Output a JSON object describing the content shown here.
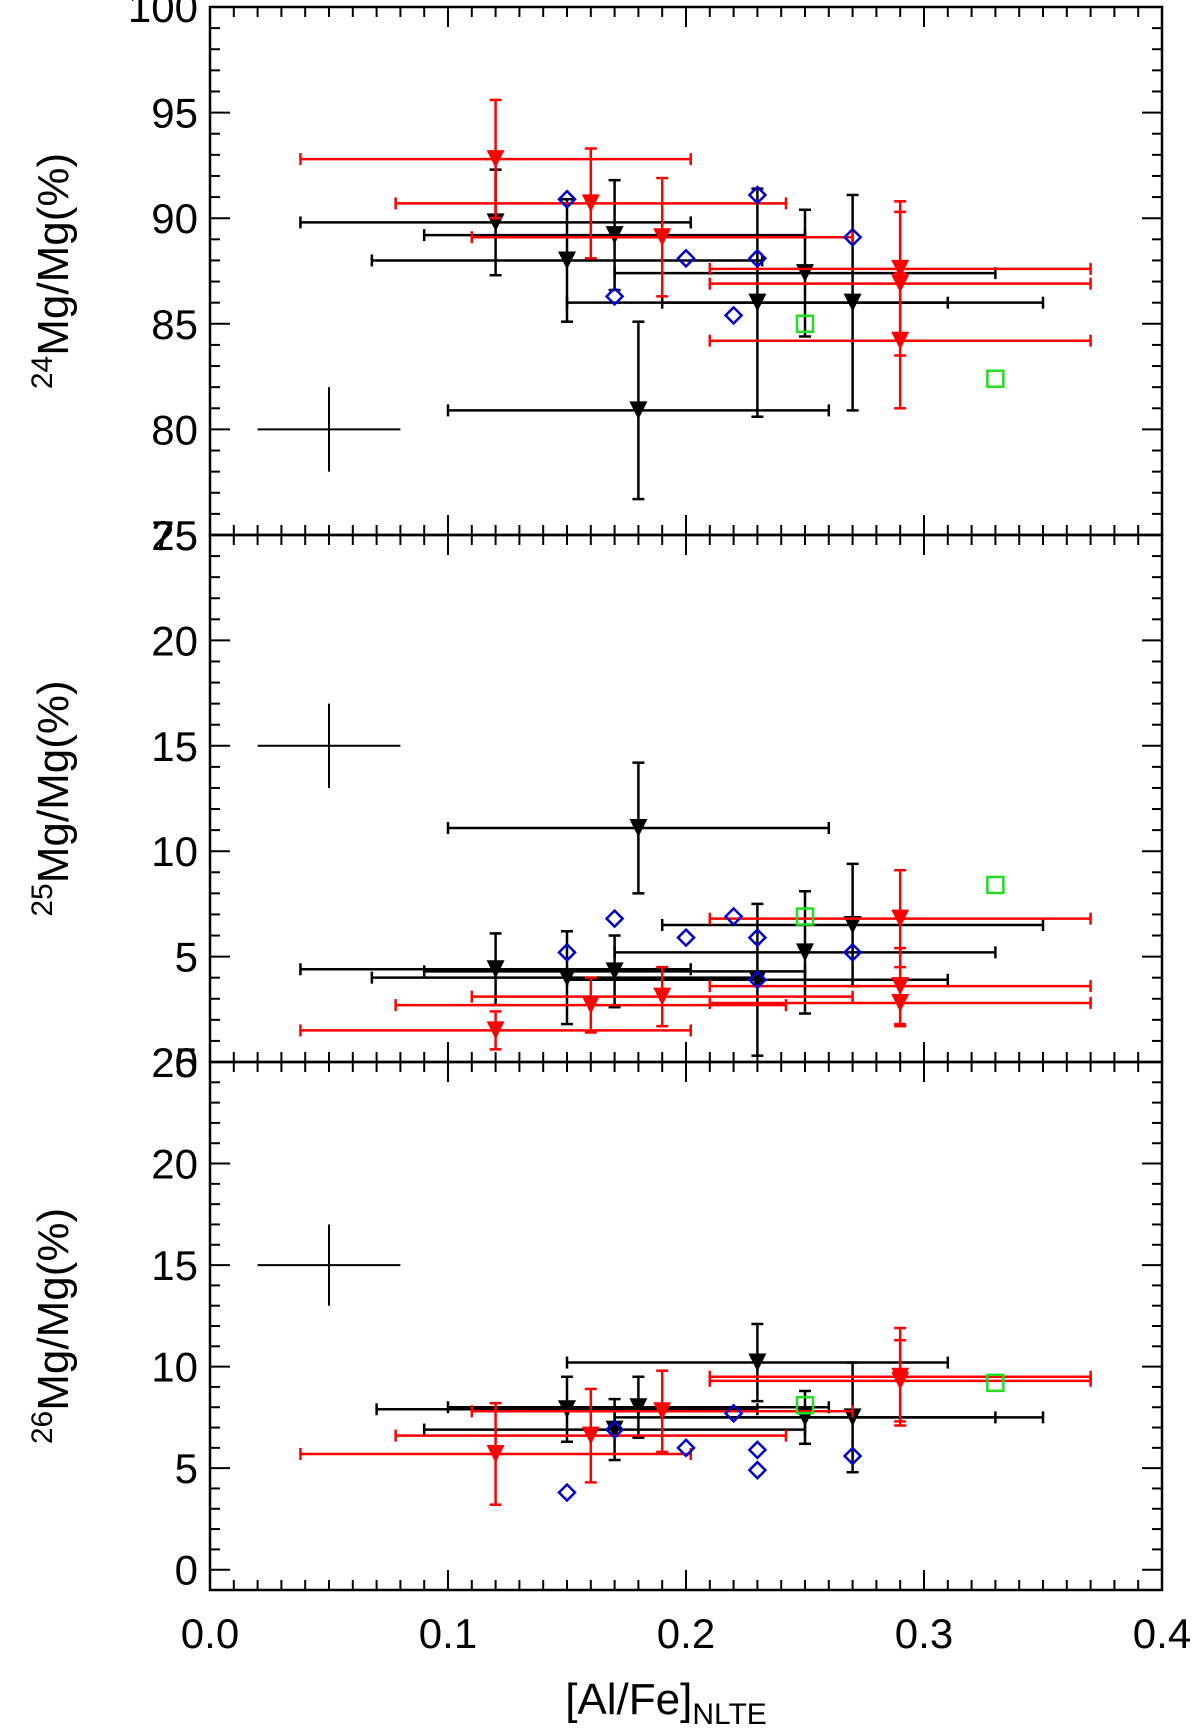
{
  "chart_data": {
    "type": "scatter",
    "shared_x": {
      "label_main": "[Al/Fe]",
      "label_sub": "NLTE",
      "range": [
        0.0,
        0.4
      ],
      "ticks": [
        0.0,
        0.1,
        0.2,
        0.3,
        0.4
      ],
      "tick_labels": [
        "0.0",
        "0.1",
        "0.2",
        "0.3",
        "0.4"
      ]
    },
    "colors": {
      "black": "#000000",
      "red": "#ff0000",
      "blue": "#0000cc",
      "green": "#22dd22"
    },
    "panels": [
      {
        "ylabel_sup": "24",
        "ylabel_rest": "Mg/Mg(%)",
        "ylim": [
          75,
          100
        ],
        "ticks": [
          75,
          80,
          85,
          90,
          95,
          100
        ],
        "tick_labels": [
          "75",
          "80",
          "85",
          "90",
          "95",
          "100"
        ],
        "typical_error": {
          "x": 0.05,
          "y": 80,
          "xerr": 0.03,
          "yerr": 2
        },
        "black_triangles": [
          {
            "x": 0.12,
            "y": 89.8,
            "xerr": 0.082,
            "yerr": 2.5
          },
          {
            "x": 0.15,
            "y": 88.0,
            "xerr": 0.082,
            "yerr": 2.9
          },
          {
            "x": 0.17,
            "y": 89.2,
            "xerr": 0.08,
            "yerr": 2.6
          },
          {
            "x": 0.18,
            "y": 80.9,
            "xerr": 0.08,
            "yerr": 4.2
          },
          {
            "x": 0.23,
            "y": 86.0,
            "xerr": 0.08,
            "yerr": 5.4
          },
          {
            "x": 0.25,
            "y": 87.4,
            "xerr": 0.08,
            "yerr": 3.0
          },
          {
            "x": 0.27,
            "y": 86.0,
            "xerr": 0.08,
            "yerr": 5.1
          }
        ],
        "red_triangles": [
          {
            "x": 0.12,
            "y": 92.8,
            "xerr": 0.082,
            "yerr": 2.8
          },
          {
            "x": 0.16,
            "y": 90.7,
            "xerr": 0.082,
            "yerr": 2.6
          },
          {
            "x": 0.19,
            "y": 89.1,
            "xerr": 0.08,
            "yerr": 2.8
          },
          {
            "x": 0.29,
            "y": 87.6,
            "xerr": 0.08,
            "yerr": 3.2
          },
          {
            "x": 0.29,
            "y": 86.9,
            "xerr": 0.08,
            "yerr": 3.4
          },
          {
            "x": 0.29,
            "y": 84.2,
            "xerr": 0.08,
            "yerr": 3.2
          }
        ],
        "blue_diamonds": [
          {
            "x": 0.15,
            "y": 90.9
          },
          {
            "x": 0.17,
            "y": 86.3
          },
          {
            "x": 0.2,
            "y": 88.1
          },
          {
            "x": 0.22,
            "y": 85.4
          },
          {
            "x": 0.23,
            "y": 91.1
          },
          {
            "x": 0.23,
            "y": 88.1
          },
          {
            "x": 0.27,
            "y": 89.1
          }
        ],
        "green_squares": [
          {
            "x": 0.25,
            "y": 85.0
          },
          {
            "x": 0.33,
            "y": 82.4
          }
        ]
      },
      {
        "ylabel_sup": "25",
        "ylabel_rest": "Mg/Mg(%)",
        "ylim": [
          0,
          25
        ],
        "ticks": [
          0,
          5,
          10,
          15,
          20,
          25
        ],
        "tick_labels": [
          "0",
          "5",
          "10",
          "15",
          "20",
          "25"
        ],
        "typical_error": {
          "x": 0.05,
          "y": 15,
          "xerr": 0.03,
          "yerr": 2
        },
        "black_triangles": [
          {
            "x": 0.12,
            "y": 4.4,
            "xerr": 0.082,
            "yerr": 1.7
          },
          {
            "x": 0.15,
            "y": 4.0,
            "xerr": 0.082,
            "yerr": 2.2
          },
          {
            "x": 0.17,
            "y": 4.3,
            "xerr": 0.08,
            "yerr": 1.7
          },
          {
            "x": 0.18,
            "y": 11.1,
            "xerr": 0.08,
            "yerr": 3.1
          },
          {
            "x": 0.23,
            "y": 3.9,
            "xerr": 0.08,
            "yerr": 3.6
          },
          {
            "x": 0.25,
            "y": 5.2,
            "xerr": 0.08,
            "yerr": 2.9
          },
          {
            "x": 0.27,
            "y": 6.5,
            "xerr": 0.08,
            "yerr": 2.9
          }
        ],
        "red_triangles": [
          {
            "x": 0.12,
            "y": 1.5,
            "xerr": 0.082,
            "yerr": 0.9
          },
          {
            "x": 0.16,
            "y": 2.7,
            "xerr": 0.082,
            "yerr": 1.3
          },
          {
            "x": 0.19,
            "y": 3.1,
            "xerr": 0.08,
            "yerr": 1.4
          },
          {
            "x": 0.29,
            "y": 6.8,
            "xerr": 0.08,
            "yerr": 2.3
          },
          {
            "x": 0.29,
            "y": 3.6,
            "xerr": 0.08,
            "yerr": 1.8
          },
          {
            "x": 0.29,
            "y": 2.8,
            "xerr": 0.08,
            "yerr": 1.1
          }
        ],
        "blue_diamonds": [
          {
            "x": 0.15,
            "y": 5.2
          },
          {
            "x": 0.17,
            "y": 6.8
          },
          {
            "x": 0.2,
            "y": 5.9
          },
          {
            "x": 0.22,
            "y": 6.9
          },
          {
            "x": 0.23,
            "y": 5.9
          },
          {
            "x": 0.23,
            "y": 3.9
          },
          {
            "x": 0.27,
            "y": 5.2
          }
        ],
        "green_squares": [
          {
            "x": 0.25,
            "y": 6.9
          },
          {
            "x": 0.33,
            "y": 8.4
          }
        ]
      },
      {
        "ylabel_sup": "26",
        "ylabel_rest": "Mg/Mg(%)",
        "ylim": [
          -1,
          25
        ],
        "ticks": [
          0,
          5,
          10,
          15,
          20,
          25
        ],
        "tick_labels": [
          "0",
          "5",
          "10",
          "15",
          "20",
          "25"
        ],
        "typical_error": {
          "x": 0.05,
          "y": 15,
          "xerr": 0.03,
          "yerr": 2
        },
        "black_triangles": [
          {
            "x": 0.15,
            "y": 7.9,
            "xerr": 0.08,
            "yerr": 1.6
          },
          {
            "x": 0.17,
            "y": 6.9,
            "xerr": 0.08,
            "yerr": 1.5
          },
          {
            "x": 0.18,
            "y": 8.0,
            "xerr": 0.08,
            "yerr": 1.5
          },
          {
            "x": 0.23,
            "y": 10.2,
            "xerr": 0.08,
            "yerr": 1.9
          },
          {
            "x": 0.25,
            "y": 7.5,
            "xerr": 0.08,
            "yerr": 1.3
          },
          {
            "x": 0.27,
            "y": 7.5,
            "xerr": 0.08,
            "yerr": 2.7
          }
        ],
        "red_triangles": [
          {
            "x": 0.12,
            "y": 5.7,
            "xerr": 0.082,
            "yerr": 2.5
          },
          {
            "x": 0.16,
            "y": 6.6,
            "xerr": 0.082,
            "yerr": 2.3
          },
          {
            "x": 0.19,
            "y": 7.8,
            "xerr": 0.08,
            "yerr": 2.0
          },
          {
            "x": 0.29,
            "y": 9.5,
            "xerr": 0.08,
            "yerr": 2.4
          },
          {
            "x": 0.29,
            "y": 9.3,
            "xerr": 0.08,
            "yerr": 2.0
          }
        ],
        "blue_diamonds": [
          {
            "x": 0.15,
            "y": 3.8
          },
          {
            "x": 0.17,
            "y": 6.9
          },
          {
            "x": 0.2,
            "y": 6.0
          },
          {
            "x": 0.22,
            "y": 7.7
          },
          {
            "x": 0.23,
            "y": 5.9
          },
          {
            "x": 0.23,
            "y": 4.9
          },
          {
            "x": 0.27,
            "y": 5.6
          }
        ],
        "green_squares": [
          {
            "x": 0.25,
            "y": 8.1
          },
          {
            "x": 0.33,
            "y": 9.2
          }
        ]
      }
    ]
  }
}
